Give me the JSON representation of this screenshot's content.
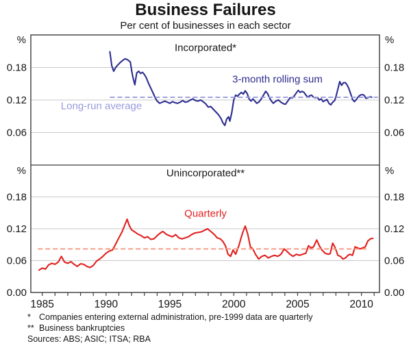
{
  "title": "Business Failures",
  "subtitle": "Per cent of businesses in each sector",
  "y_axis": {
    "unit": "%",
    "tick_format": [
      "0.00",
      "0.06",
      "0.12",
      "0.18"
    ]
  },
  "x_axis": {
    "lim": [
      1984.1,
      2011.45
    ],
    "tick_step": 1,
    "labels": [
      "1985",
      "1990",
      "1995",
      "2000",
      "2005",
      "2010"
    ],
    "label_years": [
      1985,
      1990,
      1995,
      2000,
      2005,
      2010
    ]
  },
  "colors": {
    "incorporated_line": "#2d2d8f",
    "incorporated_average": "#9999dd",
    "unincorporated_line": "#e0201e",
    "unincorporated_average": "#f5967e",
    "gridline": "#c9c9c9",
    "frame": "#3a3a3a",
    "text": "#141414"
  },
  "chart_data": [
    {
      "type": "line",
      "panel": "top",
      "panel_label": "Incorporated*",
      "ylabel": "%",
      "ylim": [
        0,
        0.24
      ],
      "yticks": [
        0.06,
        0.12,
        0.18
      ],
      "grid": true,
      "series": [
        {
          "name": "3-month rolling sum",
          "color": "#2d2d8f",
          "style": "solid",
          "points": [
            [
              1990.3,
              0.209
            ],
            [
              1990.45,
              0.183
            ],
            [
              1990.6,
              0.173
            ],
            [
              1990.75,
              0.18
            ],
            [
              1990.9,
              0.184
            ],
            [
              1991.1,
              0.189
            ],
            [
              1991.3,
              0.193
            ],
            [
              1991.5,
              0.196
            ],
            [
              1991.7,
              0.194
            ],
            [
              1991.9,
              0.19
            ],
            [
              1992.0,
              0.175
            ],
            [
              1992.1,
              0.162
            ],
            [
              1992.25,
              0.148
            ],
            [
              1992.4,
              0.17
            ],
            [
              1992.55,
              0.173
            ],
            [
              1992.7,
              0.169
            ],
            [
              1992.85,
              0.171
            ],
            [
              1993.0,
              0.167
            ],
            [
              1993.15,
              0.161
            ],
            [
              1993.3,
              0.152
            ],
            [
              1993.5,
              0.142
            ],
            [
              1993.7,
              0.132
            ],
            [
              1993.85,
              0.124
            ],
            [
              1994.0,
              0.118
            ],
            [
              1994.2,
              0.114
            ],
            [
              1994.4,
              0.116
            ],
            [
              1994.6,
              0.118
            ],
            [
              1994.8,
              0.116
            ],
            [
              1995.0,
              0.114
            ],
            [
              1995.2,
              0.117
            ],
            [
              1995.4,
              0.115
            ],
            [
              1995.6,
              0.114
            ],
            [
              1995.8,
              0.116
            ],
            [
              1996.0,
              0.119
            ],
            [
              1996.2,
              0.116
            ],
            [
              1996.4,
              0.117
            ],
            [
              1996.6,
              0.12
            ],
            [
              1996.8,
              0.122
            ],
            [
              1997.0,
              0.119
            ],
            [
              1997.2,
              0.118
            ],
            [
              1997.4,
              0.12
            ],
            [
              1997.6,
              0.117
            ],
            [
              1997.8,
              0.113
            ],
            [
              1998.0,
              0.107
            ],
            [
              1998.2,
              0.108
            ],
            [
              1998.4,
              0.103
            ],
            [
              1998.6,
              0.098
            ],
            [
              1998.8,
              0.093
            ],
            [
              1999.0,
              0.086
            ],
            [
              1999.15,
              0.078
            ],
            [
              1999.3,
              0.073
            ],
            [
              1999.45,
              0.085
            ],
            [
              1999.6,
              0.089
            ],
            [
              1999.7,
              0.081
            ],
            [
              1999.85,
              0.097
            ],
            [
              2000.0,
              0.12
            ],
            [
              2000.15,
              0.129
            ],
            [
              2000.3,
              0.127
            ],
            [
              2000.45,
              0.131
            ],
            [
              2000.6,
              0.134
            ],
            [
              2000.75,
              0.131
            ],
            [
              2000.9,
              0.137
            ],
            [
              2001.05,
              0.132
            ],
            [
              2001.2,
              0.122
            ],
            [
              2001.35,
              0.118
            ],
            [
              2001.5,
              0.122
            ],
            [
              2001.65,
              0.118
            ],
            [
              2001.8,
              0.114
            ],
            [
              2001.95,
              0.116
            ],
            [
              2002.1,
              0.12
            ],
            [
              2002.25,
              0.126
            ],
            [
              2002.4,
              0.132
            ],
            [
              2002.5,
              0.136
            ],
            [
              2002.65,
              0.132
            ],
            [
              2002.8,
              0.124
            ],
            [
              2002.95,
              0.118
            ],
            [
              2003.1,
              0.114
            ],
            [
              2003.3,
              0.118
            ],
            [
              2003.5,
              0.12
            ],
            [
              2003.7,
              0.116
            ],
            [
              2003.9,
              0.113
            ],
            [
              2004.05,
              0.112
            ],
            [
              2004.2,
              0.117
            ],
            [
              2004.4,
              0.124
            ],
            [
              2004.6,
              0.124
            ],
            [
              2004.75,
              0.128
            ],
            [
              2004.9,
              0.133
            ],
            [
              2005.05,
              0.138
            ],
            [
              2005.2,
              0.134
            ],
            [
              2005.35,
              0.136
            ],
            [
              2005.5,
              0.134
            ],
            [
              2005.65,
              0.129
            ],
            [
              2005.8,
              0.125
            ],
            [
              2005.95,
              0.128
            ],
            [
              2006.1,
              0.129
            ],
            [
              2006.25,
              0.125
            ],
            [
              2006.4,
              0.124
            ],
            [
              2006.55,
              0.125
            ],
            [
              2006.7,
              0.12
            ],
            [
              2006.85,
              0.122
            ],
            [
              2007.0,
              0.117
            ],
            [
              2007.15,
              0.119
            ],
            [
              2007.3,
              0.121
            ],
            [
              2007.45,
              0.114
            ],
            [
              2007.6,
              0.111
            ],
            [
              2007.75,
              0.116
            ],
            [
              2007.9,
              0.119
            ],
            [
              2008.0,
              0.126
            ],
            [
              2008.15,
              0.14
            ],
            [
              2008.3,
              0.154
            ],
            [
              2008.45,
              0.147
            ],
            [
              2008.6,
              0.152
            ],
            [
              2008.75,
              0.152
            ],
            [
              2008.9,
              0.147
            ],
            [
              2009.0,
              0.142
            ],
            [
              2009.15,
              0.132
            ],
            [
              2009.3,
              0.121
            ],
            [
              2009.45,
              0.117
            ],
            [
              2009.6,
              0.121
            ],
            [
              2009.75,
              0.126
            ],
            [
              2009.9,
              0.129
            ],
            [
              2010.05,
              0.13
            ],
            [
              2010.2,
              0.129
            ],
            [
              2010.35,
              0.123
            ],
            [
              2010.5,
              0.124
            ],
            [
              2010.65,
              0.126
            ],
            [
              2010.8,
              0.125
            ]
          ]
        },
        {
          "name": "Long-run average",
          "color": "#9999dd",
          "style": "dashed",
          "value": 0.125,
          "x_range": [
            1990.3,
            2011.3
          ]
        }
      ]
    },
    {
      "type": "line",
      "panel": "bottom",
      "panel_label": "Unincorporated**",
      "ylabel": "%",
      "ylim": [
        0,
        0.24
      ],
      "yticks": [
        0,
        0.06,
        0.12,
        0.18
      ],
      "grid": true,
      "series": [
        {
          "name": "Quarterly",
          "color": "#e0201e",
          "style": "solid",
          "points": [
            [
              1984.75,
              0.042
            ],
            [
              1985.0,
              0.046
            ],
            [
              1985.25,
              0.044
            ],
            [
              1985.5,
              0.052
            ],
            [
              1985.75,
              0.055
            ],
            [
              1986.0,
              0.053
            ],
            [
              1986.25,
              0.057
            ],
            [
              1986.5,
              0.068
            ],
            [
              1986.75,
              0.057
            ],
            [
              1987.0,
              0.055
            ],
            [
              1987.25,
              0.058
            ],
            [
              1987.5,
              0.053
            ],
            [
              1987.75,
              0.049
            ],
            [
              1988.0,
              0.054
            ],
            [
              1988.25,
              0.053
            ],
            [
              1988.5,
              0.049
            ],
            [
              1988.75,
              0.047
            ],
            [
              1989.0,
              0.051
            ],
            [
              1989.25,
              0.059
            ],
            [
              1989.5,
              0.063
            ],
            [
              1989.75,
              0.068
            ],
            [
              1990.0,
              0.074
            ],
            [
              1990.25,
              0.078
            ],
            [
              1990.5,
              0.08
            ],
            [
              1990.75,
              0.091
            ],
            [
              1991.0,
              0.103
            ],
            [
              1991.25,
              0.114
            ],
            [
              1991.5,
              0.129
            ],
            [
              1991.65,
              0.138
            ],
            [
              1991.8,
              0.127
            ],
            [
              1992.0,
              0.118
            ],
            [
              1992.25,
              0.114
            ],
            [
              1992.5,
              0.11
            ],
            [
              1992.75,
              0.107
            ],
            [
              1993.0,
              0.103
            ],
            [
              1993.25,
              0.105
            ],
            [
              1993.5,
              0.1
            ],
            [
              1993.75,
              0.101
            ],
            [
              1994.0,
              0.107
            ],
            [
              1994.25,
              0.112
            ],
            [
              1994.45,
              0.115
            ],
            [
              1994.7,
              0.11
            ],
            [
              1994.95,
              0.107
            ],
            [
              1995.2,
              0.105
            ],
            [
              1995.45,
              0.109
            ],
            [
              1995.7,
              0.103
            ],
            [
              1995.95,
              0.101
            ],
            [
              1996.2,
              0.103
            ],
            [
              1996.45,
              0.105
            ],
            [
              1996.7,
              0.109
            ],
            [
              1996.95,
              0.112
            ],
            [
              1997.2,
              0.113
            ],
            [
              1997.45,
              0.114
            ],
            [
              1997.7,
              0.117
            ],
            [
              1997.95,
              0.12
            ],
            [
              1998.2,
              0.115
            ],
            [
              1998.45,
              0.11
            ],
            [
              1998.7,
              0.103
            ],
            [
              1998.95,
              0.101
            ],
            [
              1999.15,
              0.096
            ],
            [
              1999.35,
              0.088
            ],
            [
              1999.55,
              0.072
            ],
            [
              1999.75,
              0.068
            ],
            [
              1999.95,
              0.08
            ],
            [
              2000.15,
              0.072
            ],
            [
              2000.4,
              0.088
            ],
            [
              2000.6,
              0.105
            ],
            [
              2000.75,
              0.116
            ],
            [
              2000.9,
              0.125
            ],
            [
              2001.1,
              0.11
            ],
            [
              2001.3,
              0.086
            ],
            [
              2001.5,
              0.082
            ],
            [
              2001.7,
              0.072
            ],
            [
              2001.95,
              0.063
            ],
            [
              2002.2,
              0.068
            ],
            [
              2002.45,
              0.07
            ],
            [
              2002.7,
              0.065
            ],
            [
              2002.95,
              0.068
            ],
            [
              2003.2,
              0.07
            ],
            [
              2003.45,
              0.068
            ],
            [
              2003.7,
              0.072
            ],
            [
              2003.95,
              0.082
            ],
            [
              2004.15,
              0.078
            ],
            [
              2004.4,
              0.072
            ],
            [
              2004.65,
              0.068
            ],
            [
              2004.9,
              0.072
            ],
            [
              2005.15,
              0.07
            ],
            [
              2005.4,
              0.072
            ],
            [
              2005.65,
              0.074
            ],
            [
              2005.85,
              0.088
            ],
            [
              2006.05,
              0.084
            ],
            [
              2006.25,
              0.086
            ],
            [
              2006.5,
              0.099
            ],
            [
              2006.7,
              0.088
            ],
            [
              2006.9,
              0.08
            ],
            [
              2007.15,
              0.074
            ],
            [
              2007.4,
              0.072
            ],
            [
              2007.55,
              0.073
            ],
            [
              2007.75,
              0.093
            ],
            [
              2007.95,
              0.084
            ],
            [
              2008.15,
              0.07
            ],
            [
              2008.35,
              0.068
            ],
            [
              2008.55,
              0.063
            ],
            [
              2008.75,
              0.065
            ],
            [
              2008.95,
              0.07
            ],
            [
              2009.1,
              0.072
            ],
            [
              2009.3,
              0.07
            ],
            [
              2009.5,
              0.086
            ],
            [
              2009.7,
              0.084
            ],
            [
              2009.9,
              0.082
            ],
            [
              2010.1,
              0.084
            ],
            [
              2010.3,
              0.086
            ],
            [
              2010.5,
              0.097
            ],
            [
              2010.7,
              0.101
            ],
            [
              2010.9,
              0.102
            ]
          ]
        },
        {
          "name": "Long-run average",
          "color": "#f5967e",
          "style": "dashed",
          "value": 0.082,
          "x_range": [
            1984.65,
            2010.55
          ]
        }
      ]
    }
  ],
  "footnotes": [
    {
      "marker": "*",
      "text": "Companies entering external administration, pre-1999 data are quarterly"
    },
    {
      "marker": "**",
      "text": "Business bankruptcies"
    }
  ],
  "sources": "Sources: ABS; ASIC; ITSA; RBA"
}
